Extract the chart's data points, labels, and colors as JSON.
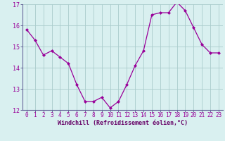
{
  "hours": [
    0,
    1,
    2,
    3,
    4,
    5,
    6,
    7,
    8,
    9,
    10,
    11,
    12,
    13,
    14,
    15,
    16,
    17,
    18,
    19,
    20,
    21,
    22,
    23
  ],
  "values": [
    15.8,
    15.3,
    14.6,
    14.8,
    14.5,
    14.2,
    13.2,
    12.4,
    12.4,
    12.6,
    12.1,
    12.4,
    13.2,
    14.1,
    14.8,
    16.5,
    16.6,
    16.6,
    17.1,
    16.7,
    15.9,
    15.1,
    14.7,
    14.7
  ],
  "line_color": "#990099",
  "marker": "D",
  "marker_size": 2.0,
  "bg_color": "#d9f0f0",
  "grid_color": "#aacccc",
  "xlabel": "Windchill (Refroidissement éolien,°C)",
  "xlabel_color": "#660066",
  "tick_color": "#990099",
  "ylim": [
    12,
    17
  ],
  "yticks": [
    12,
    13,
    14,
    15,
    16,
    17
  ],
  "xticks": [
    0,
    1,
    2,
    3,
    4,
    5,
    6,
    7,
    8,
    9,
    10,
    11,
    12,
    13,
    14,
    15,
    16,
    17,
    18,
    19,
    20,
    21,
    22,
    23
  ],
  "title": "",
  "spine_color": "#666699",
  "tick_fontsize": 5.5,
  "xlabel_fontsize": 6.0
}
